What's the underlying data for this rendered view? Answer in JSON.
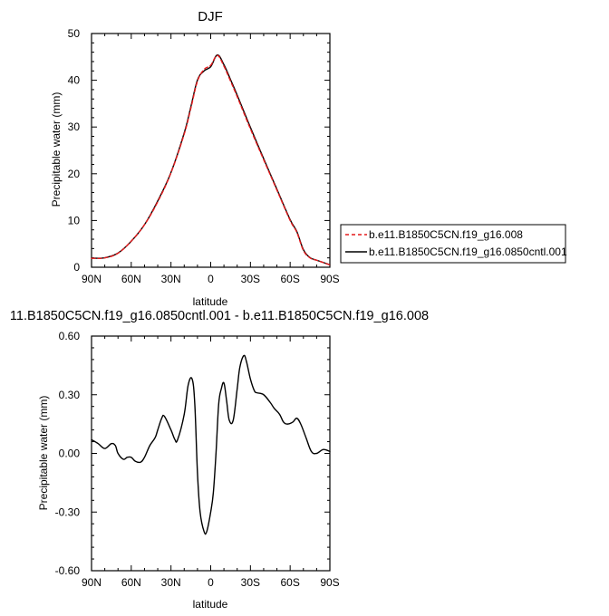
{
  "chart_data": [
    {
      "type": "line",
      "title": "DJF",
      "xlabel": "latitude",
      "ylabel": "Precipitable water (mm)",
      "xlim": [
        90,
        -90
      ],
      "ylim": [
        0,
        50
      ],
      "x_tick_values": [
        90,
        60,
        30,
        0,
        -30,
        -60,
        -90
      ],
      "x_tick_labels": [
        "90N",
        "60N",
        "30N",
        "0",
        "30S",
        "60S",
        "90S"
      ],
      "y_tick_values": [
        0,
        10,
        20,
        30,
        40,
        50
      ],
      "y_tick_labels": [
        "0",
        "10",
        "20",
        "30",
        "40",
        "50"
      ],
      "grid": false,
      "legend_position": "right",
      "x": [
        90,
        80,
        70,
        60,
        50,
        40,
        30,
        20,
        15,
        10,
        5,
        0,
        -5,
        -10,
        -15,
        -20,
        -30,
        -40,
        -50,
        -60,
        -65,
        -70,
        -75,
        -80,
        -85,
        -90
      ],
      "series": [
        {
          "name": "b.e11.B1850C5CN.f19_g16.008",
          "color": "#e41a1c",
          "dash": "dashed",
          "values": [
            1.9,
            2.0,
            3.0,
            5.6,
            9.1,
            14.0,
            20.2,
            28.5,
            34.0,
            39.8,
            42.3,
            43.2,
            45.3,
            43.0,
            39.8,
            36.5,
            29.6,
            23.0,
            16.5,
            10.0,
            7.5,
            3.6,
            2.0,
            1.5,
            1.0,
            0.5
          ]
        },
        {
          "name": "b.e11.B1850C5CN.f19_g16.0850cntl.001",
          "color": "#000000",
          "dash": "solid",
          "values": [
            1.97,
            2.03,
            3.04,
            5.56,
            9.1,
            14.18,
            20.27,
            28.73,
            34.3,
            40.05,
            42.0,
            42.9,
            45.4,
            43.33,
            40.12,
            36.82,
            29.91,
            23.22,
            16.68,
            10.17,
            7.66,
            3.76,
            2.06,
            1.5,
            1.02,
            0.52
          ]
        }
      ]
    },
    {
      "type": "line",
      "title": "11.B1850C5CN.f19_g16.0850cntl.001 - b.e11.B1850C5CN.f19_g16.008",
      "xlabel": "latitude",
      "ylabel": "Precipitable water (mm)",
      "xlim": [
        90,
        -90
      ],
      "ylim": [
        -0.6,
        0.6
      ],
      "x_tick_values": [
        90,
        60,
        30,
        0,
        -30,
        -60,
        -90
      ],
      "x_tick_labels": [
        "90N",
        "60N",
        "30N",
        "0",
        "30S",
        "60S",
        "90S"
      ],
      "y_tick_values": [
        -0.6,
        -0.3,
        0.0,
        0.3,
        0.6
      ],
      "y_tick_labels": [
        "-0.60",
        "-0.30",
        "0.00",
        "0.30",
        "0.60"
      ],
      "grid": false,
      "x": [
        90,
        85,
        80,
        75,
        72,
        70,
        66,
        63,
        60,
        57,
        53,
        50,
        46,
        42,
        40,
        37,
        35,
        30,
        27,
        25,
        20,
        17,
        14,
        12,
        10,
        8,
        5,
        3,
        0,
        -2,
        -4,
        -6,
        -8,
        -10,
        -12,
        -14,
        -17,
        -20,
        -22,
        -25,
        -27,
        -30,
        -33,
        -35,
        -40,
        -45,
        -48,
        -52,
        -55,
        -58,
        -62,
        -65,
        -68,
        -72,
        -76,
        -80,
        -85,
        -90
      ],
      "series": [
        {
          "name": "",
          "color": "#000000",
          "dash": "solid",
          "values": [
            0.07,
            0.05,
            0.025,
            0.05,
            0.04,
            0.0,
            -0.03,
            -0.02,
            -0.02,
            -0.04,
            -0.045,
            -0.02,
            0.04,
            0.08,
            0.12,
            0.18,
            0.19,
            0.12,
            0.07,
            0.07,
            0.2,
            0.35,
            0.38,
            0.25,
            -0.1,
            -0.3,
            -0.4,
            -0.4,
            -0.3,
            -0.2,
            0.0,
            0.25,
            0.33,
            0.36,
            0.27,
            0.17,
            0.17,
            0.33,
            0.44,
            0.5,
            0.47,
            0.38,
            0.32,
            0.31,
            0.3,
            0.26,
            0.23,
            0.2,
            0.16,
            0.15,
            0.16,
            0.18,
            0.15,
            0.08,
            0.01,
            0.0,
            0.02,
            0.01
          ]
        }
      ]
    }
  ]
}
